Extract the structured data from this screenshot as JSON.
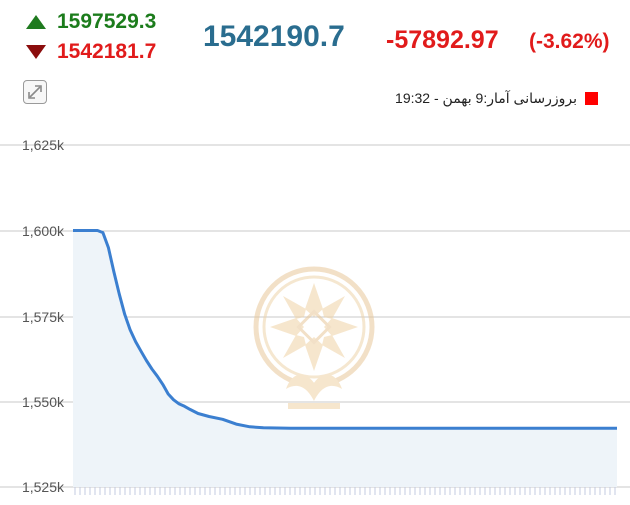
{
  "header": {
    "high": "1597529.3",
    "low": "1542181.7",
    "last": "1542190.7",
    "change": "-57892.97",
    "change_pct": "(-3.62%)"
  },
  "legend": {
    "label": "بروزرسانی آمار:9 بهمن - 19:32",
    "color": "#ff0000"
  },
  "colors": {
    "up": "#1c7c1c",
    "down": "#e11b1b",
    "last": "#2a6d8f",
    "line": "#3b7fd0",
    "area": "#eef4f9",
    "grid": "#c8c8c8"
  },
  "icons": {
    "up": "triangle-up-icon",
    "down": "triangle-down-icon",
    "expand": "expand-icon",
    "watermark": "emblem-watermark"
  },
  "chart_data": {
    "type": "area",
    "x": [
      0,
      0.3,
      0.5,
      0.7,
      0.9,
      1.1,
      1.3,
      1.5,
      1.7,
      1.9,
      2.1,
      2.3,
      2.5,
      2.7,
      2.9,
      3.1,
      3.3,
      3.5,
      3.7,
      3.9,
      4.1,
      4.3,
      4.6,
      5.0,
      5.5,
      6.0,
      6.5,
      7.0,
      7.5,
      8.0,
      9,
      10,
      11,
      12,
      13,
      14,
      15,
      16,
      17,
      18,
      19,
      20
    ],
    "values": [
      1600000,
      1600000,
      1600000,
      1600000,
      1600000,
      1599400,
      1595000,
      1588000,
      1581500,
      1575500,
      1571000,
      1567500,
      1564700,
      1562000,
      1559500,
      1557400,
      1555000,
      1552200,
      1550500,
      1549300,
      1548600,
      1547700,
      1546500,
      1545600,
      1544800,
      1543400,
      1542600,
      1542350,
      1542250,
      1542200,
      1542200,
      1542200,
      1542200,
      1542200,
      1542200,
      1542200,
      1542200,
      1542200,
      1542200,
      1542200,
      1542200,
      1542190.7
    ],
    "y_ticks": [
      "1,525k",
      "1,550k",
      "1,575k",
      "1,600k",
      "1,625k"
    ],
    "ylim": [
      1525000,
      1628000
    ],
    "xlim": [
      0,
      20
    ],
    "grid": true,
    "legend_position": "top-right"
  }
}
